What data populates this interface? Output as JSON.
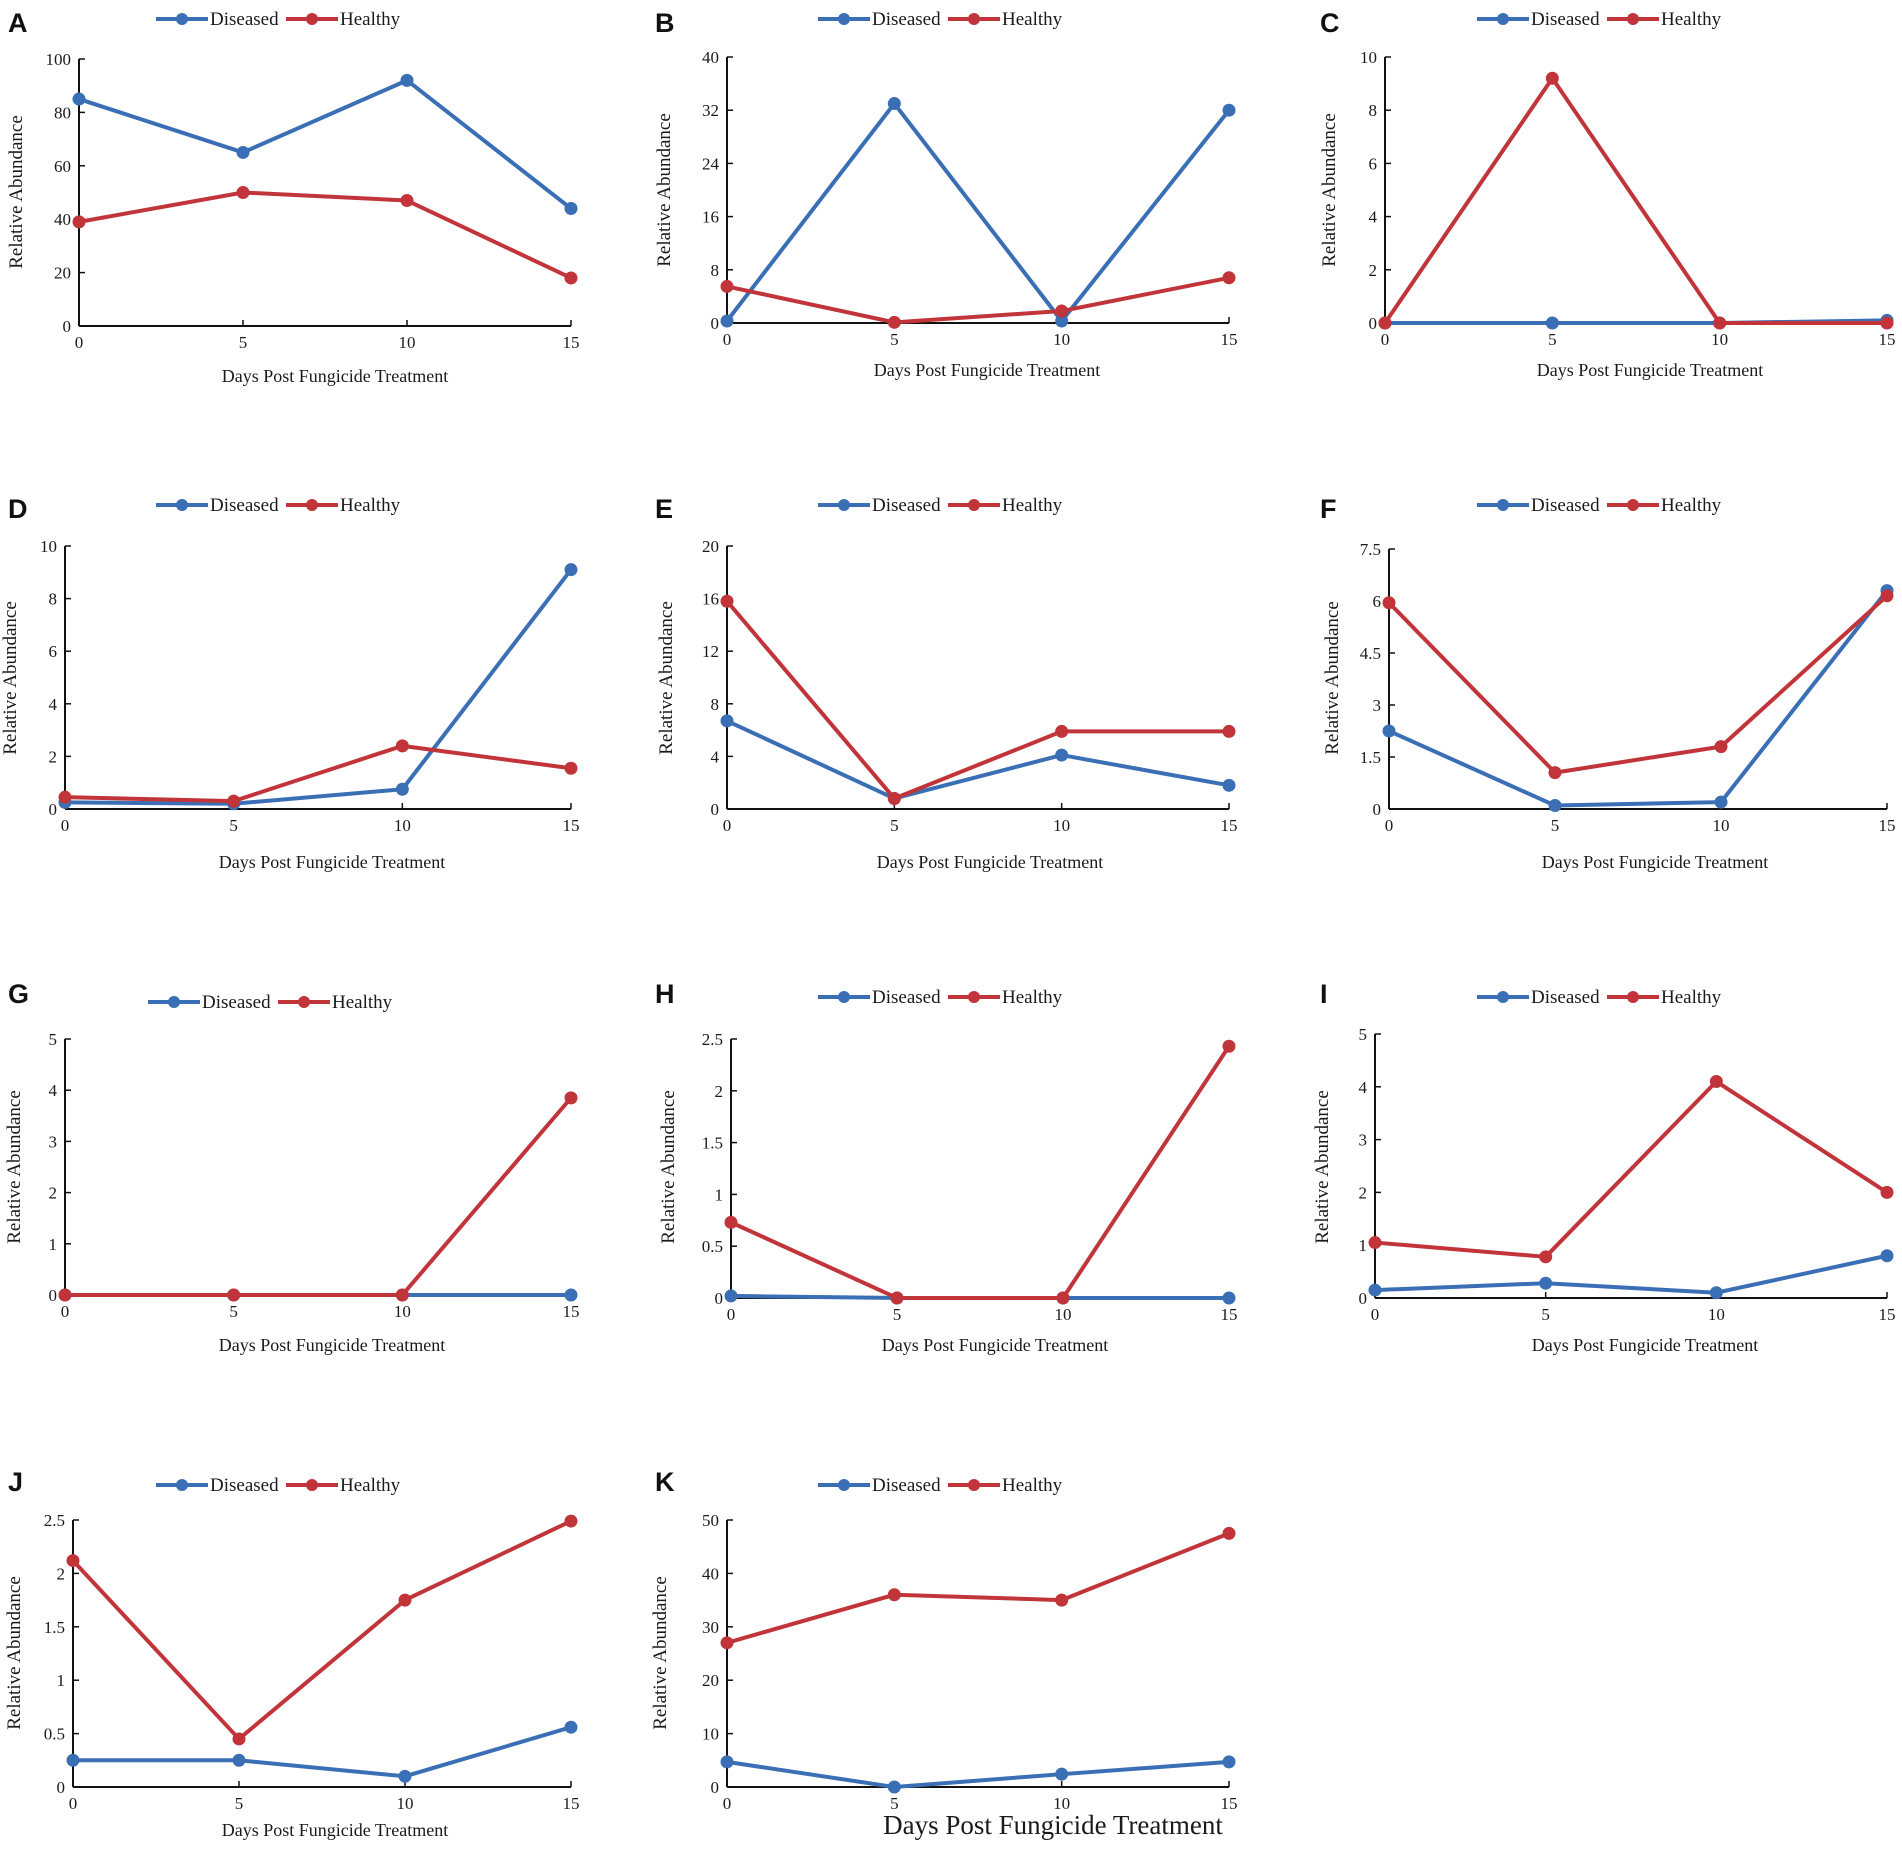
{
  "figure": {
    "description_none": ""
  },
  "colors": {
    "diseased": "#3a6fb5",
    "healthy": "#c1353a",
    "axis": "#111111"
  },
  "chart_data": [
    {
      "type": "line",
      "panel": "A",
      "title": "",
      "xlabel": "Days Post Fungicide Treatment",
      "ylabel": "Relative Abundance",
      "x": [
        0,
        5,
        10,
        15
      ],
      "xticks": [
        "0",
        "5",
        "10",
        "15"
      ],
      "yticks": [
        "0",
        "20",
        "40",
        "60",
        "80",
        "100"
      ],
      "ylim": [
        0,
        100
      ],
      "legend": [
        "Diseased",
        "Healthy"
      ],
      "series": [
        {
          "name": "Diseased",
          "values": [
            85,
            65,
            92,
            44
          ]
        },
        {
          "name": "Healthy",
          "values": [
            39,
            50,
            47,
            18
          ]
        }
      ]
    },
    {
      "type": "line",
      "panel": "B",
      "title": "",
      "xlabel": "Days Post Fungicide Treatment",
      "ylabel": "Relative Abundance",
      "x": [
        0,
        5,
        10,
        15
      ],
      "xticks": [
        "0",
        "5",
        "10",
        "15"
      ],
      "yticks": [
        "0",
        "8",
        "16",
        "24",
        "32",
        "40"
      ],
      "ylim": [
        0,
        40
      ],
      "legend": [
        "Diseased",
        "Healthy"
      ],
      "series": [
        {
          "name": "Diseased",
          "values": [
            0.3,
            33,
            0.3,
            32
          ]
        },
        {
          "name": "Healthy",
          "values": [
            5.5,
            0.1,
            1.8,
            6.8
          ]
        }
      ]
    },
    {
      "type": "line",
      "panel": "C",
      "title": "",
      "xlabel": "Days Post Fungicide Treatment",
      "ylabel": "Relative Abundance",
      "x": [
        0,
        5,
        10,
        15
      ],
      "xticks": [
        "0",
        "5",
        "10",
        "15"
      ],
      "yticks": [
        "0",
        "2",
        "4",
        "6",
        "8",
        "10"
      ],
      "ylim": [
        0,
        10
      ],
      "legend": [
        "Diseased",
        "Healthy"
      ],
      "series": [
        {
          "name": "Diseased",
          "values": [
            0,
            0,
            0,
            0.1
          ]
        },
        {
          "name": "Healthy",
          "values": [
            0,
            9.2,
            0,
            0
          ]
        }
      ]
    },
    {
      "type": "line",
      "panel": "D",
      "title": "",
      "xlabel": "Days Post Fungicide Treatment",
      "ylabel": "Relative Abundance",
      "x": [
        0,
        5,
        10,
        15
      ],
      "xticks": [
        "0",
        "5",
        "10",
        "15"
      ],
      "yticks": [
        "0",
        "2",
        "4",
        "6",
        "8",
        "10"
      ],
      "ylim": [
        0,
        10
      ],
      "legend": [
        "Diseased",
        "Healthy"
      ],
      "series": [
        {
          "name": "Diseased",
          "values": [
            0.25,
            0.2,
            0.75,
            9.1
          ]
        },
        {
          "name": "Healthy",
          "values": [
            0.45,
            0.3,
            2.4,
            1.55
          ]
        }
      ]
    },
    {
      "type": "line",
      "panel": "E",
      "title": "",
      "xlabel": "Days Post Fungicide Treatment",
      "ylabel": "Relative Abundance",
      "x": [
        0,
        5,
        10,
        15
      ],
      "xticks": [
        "0",
        "5",
        "10",
        "15"
      ],
      "yticks": [
        "0",
        "4",
        "8",
        "12",
        "16",
        "20"
      ],
      "ylim": [
        0,
        20
      ],
      "legend": [
        "Diseased",
        "Healthy"
      ],
      "series": [
        {
          "name": "Diseased",
          "values": [
            6.7,
            0.8,
            4.1,
            1.8
          ]
        },
        {
          "name": "Healthy",
          "values": [
            15.8,
            0.8,
            5.9,
            5.9
          ]
        }
      ]
    },
    {
      "type": "line",
      "panel": "F",
      "title": "",
      "xlabel": "Days Post Fungicide Treatment",
      "ylabel": "Relative Abundance",
      "x": [
        0,
        5,
        10,
        15
      ],
      "xticks": [
        "0",
        "5",
        "10",
        "15"
      ],
      "yticks": [
        "0",
        "1.5",
        "3",
        "4.5",
        "6",
        "7.5"
      ],
      "ylim": [
        0,
        7.5
      ],
      "legend": [
        "Diseased",
        "Healthy"
      ],
      "series": [
        {
          "name": "Diseased",
          "values": [
            2.25,
            0.1,
            0.2,
            6.3
          ]
        },
        {
          "name": "Healthy",
          "values": [
            5.95,
            1.05,
            1.8,
            6.15
          ]
        }
      ]
    },
    {
      "type": "line",
      "panel": "G",
      "title": "",
      "xlabel": "Days Post Fungicide Treatment",
      "ylabel": "Relative Abundance",
      "x": [
        0,
        5,
        10,
        15
      ],
      "xticks": [
        "0",
        "5",
        "10",
        "15"
      ],
      "yticks": [
        "0",
        "1",
        "2",
        "3",
        "4",
        "5"
      ],
      "ylim": [
        0,
        5
      ],
      "legend": [
        "Diseased",
        "Healthy"
      ],
      "series": [
        {
          "name": "Diseased",
          "values": [
            0,
            0,
            0,
            0
          ]
        },
        {
          "name": "Healthy",
          "values": [
            0,
            0,
            0,
            3.85
          ]
        }
      ]
    },
    {
      "type": "line",
      "panel": "H",
      "title": "",
      "xlabel": "Days Post Fungicide Treatment",
      "ylabel": "Relative Abundance",
      "x": [
        0,
        5,
        10,
        15
      ],
      "xticks": [
        "0",
        "5",
        "10",
        "15"
      ],
      "yticks": [
        "0",
        "0.5",
        "1",
        "1.5",
        "2",
        "2.5"
      ],
      "ylim": [
        0,
        2.5
      ],
      "legend": [
        "Diseased",
        "Healthy"
      ],
      "series": [
        {
          "name": "Diseased",
          "values": [
            0.02,
            0,
            0,
            0
          ]
        },
        {
          "name": "Healthy",
          "values": [
            0.73,
            0,
            0,
            2.43
          ]
        }
      ]
    },
    {
      "type": "line",
      "panel": "I",
      "title": "",
      "xlabel": "Days Post Fungicide Treatment",
      "ylabel": "Relative Abundance",
      "x": [
        0,
        5,
        10,
        15
      ],
      "xticks": [
        "0",
        "5",
        "10",
        "15"
      ],
      "yticks": [
        "0",
        "1",
        "2",
        "3",
        "4",
        "5"
      ],
      "ylim": [
        0,
        5
      ],
      "legend": [
        "Diseased",
        "Healthy"
      ],
      "series": [
        {
          "name": "Diseased",
          "values": [
            0.15,
            0.28,
            0.1,
            0.8
          ]
        },
        {
          "name": "Healthy",
          "values": [
            1.05,
            0.78,
            4.1,
            2.0
          ]
        }
      ]
    },
    {
      "type": "line",
      "panel": "J",
      "title": "",
      "xlabel": "Days Post Fungicide Treatment",
      "ylabel": "Relative Abundance",
      "x": [
        0,
        5,
        10,
        15
      ],
      "xticks": [
        "0",
        "5",
        "10",
        "15"
      ],
      "yticks": [
        "0",
        "0.5",
        "1",
        "1.5",
        "2",
        "2.5"
      ],
      "ylim": [
        0,
        2.5
      ],
      "legend": [
        "Diseased",
        "Healthy"
      ],
      "series": [
        {
          "name": "Diseased",
          "values": [
            0.25,
            0.25,
            0.1,
            0.56
          ]
        },
        {
          "name": "Healthy",
          "values": [
            2.12,
            0.45,
            1.75,
            2.49
          ]
        }
      ]
    },
    {
      "type": "line",
      "panel": "K",
      "title": "",
      "xlabel": "Days Post Fungicide Treatment",
      "ylabel": "Relative Abundance",
      "x": [
        0,
        5,
        10,
        15
      ],
      "xticks": [
        "0",
        "5",
        "10",
        "15"
      ],
      "yticks": [
        "0",
        "10",
        "20",
        "30",
        "40",
        "50"
      ],
      "ylim": [
        0,
        50
      ],
      "legend": [
        "Diseased",
        "Healthy"
      ],
      "series": [
        {
          "name": "Diseased",
          "values": [
            4.7,
            0,
            2.4,
            4.7
          ]
        },
        {
          "name": "Healthy",
          "values": [
            27,
            36,
            35,
            47.5
          ]
        }
      ]
    }
  ]
}
